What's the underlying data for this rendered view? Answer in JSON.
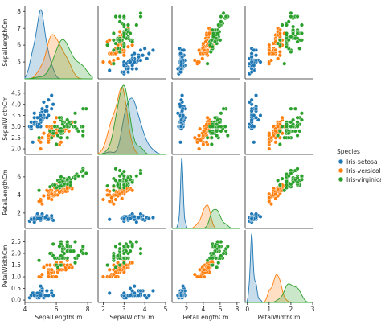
{
  "chart_data": {
    "type": "scatter",
    "kind": "pairplot",
    "variables": [
      "SepalLengthCm",
      "SepalWidthCm",
      "PetalLengthCm",
      "PetalWidthCm"
    ],
    "axes": {
      "SepalLengthCm": {
        "range": [
          4.0,
          8.3
        ],
        "ticks": [
          4,
          6,
          8
        ],
        "row_ticks": [
          5,
          6,
          7,
          8
        ]
      },
      "SepalWidthCm": {
        "range": [
          1.75,
          5.0
        ],
        "ticks": [
          2,
          3,
          4,
          5
        ],
        "row_ticks": [
          2.0,
          2.5,
          3.0,
          3.5,
          4.0,
          4.5
        ]
      },
      "PetalLengthCm": {
        "range": [
          0.3,
          8.3
        ],
        "ticks": [
          2,
          4,
          6,
          8
        ],
        "row_ticks": [
          2,
          4,
          6
        ]
      },
      "PetalWidthCm": {
        "range": [
          -0.1,
          3.0
        ],
        "ticks": [
          0,
          1,
          2,
          3
        ],
        "row_ticks": [
          0.0,
          0.5,
          1.0,
          1.5,
          2.0,
          2.5
        ]
      }
    },
    "diagonal": "kde",
    "offdiagonal": "scatter",
    "legend": {
      "title": "Species",
      "placement": "right",
      "entries": [
        "Iris-setosa",
        "Iris-versicolor",
        "Iris-virginica"
      ]
    },
    "series": [
      {
        "name": "Iris-setosa",
        "color": "#1f77b4",
        "points": [
          [
            5.1,
            3.5,
            1.4,
            0.2
          ],
          [
            4.9,
            3.0,
            1.4,
            0.2
          ],
          [
            4.7,
            3.2,
            1.3,
            0.2
          ],
          [
            4.6,
            3.1,
            1.5,
            0.2
          ],
          [
            5.0,
            3.6,
            1.4,
            0.2
          ],
          [
            5.4,
            3.9,
            1.7,
            0.4
          ],
          [
            4.6,
            3.4,
            1.4,
            0.3
          ],
          [
            5.0,
            3.4,
            1.5,
            0.2
          ],
          [
            4.4,
            2.9,
            1.4,
            0.2
          ],
          [
            4.9,
            3.1,
            1.5,
            0.1
          ],
          [
            5.4,
            3.7,
            1.5,
            0.2
          ],
          [
            4.8,
            3.4,
            1.6,
            0.2
          ],
          [
            4.8,
            3.0,
            1.4,
            0.1
          ],
          [
            4.3,
            3.0,
            1.1,
            0.1
          ],
          [
            5.8,
            4.0,
            1.2,
            0.2
          ],
          [
            5.7,
            4.4,
            1.5,
            0.4
          ],
          [
            5.4,
            3.9,
            1.3,
            0.4
          ],
          [
            5.1,
            3.5,
            1.4,
            0.3
          ],
          [
            5.7,
            3.8,
            1.7,
            0.3
          ],
          [
            5.1,
            3.8,
            1.5,
            0.3
          ],
          [
            5.4,
            3.4,
            1.7,
            0.2
          ],
          [
            5.1,
            3.7,
            1.5,
            0.4
          ],
          [
            4.6,
            3.6,
            1.0,
            0.2
          ],
          [
            5.1,
            3.3,
            1.7,
            0.5
          ],
          [
            4.8,
            3.4,
            1.9,
            0.2
          ],
          [
            5.0,
            3.0,
            1.6,
            0.2
          ],
          [
            5.0,
            3.4,
            1.6,
            0.4
          ],
          [
            5.2,
            3.5,
            1.5,
            0.2
          ],
          [
            5.2,
            3.4,
            1.4,
            0.2
          ],
          [
            4.7,
            3.2,
            1.6,
            0.2
          ],
          [
            4.8,
            3.1,
            1.6,
            0.2
          ],
          [
            5.4,
            3.4,
            1.5,
            0.4
          ],
          [
            5.2,
            4.1,
            1.5,
            0.1
          ],
          [
            5.5,
            4.2,
            1.4,
            0.2
          ],
          [
            4.9,
            3.1,
            1.5,
            0.1
          ],
          [
            5.0,
            3.2,
            1.2,
            0.2
          ],
          [
            5.5,
            3.5,
            1.3,
            0.2
          ],
          [
            4.9,
            3.1,
            1.5,
            0.1
          ],
          [
            4.4,
            3.0,
            1.3,
            0.2
          ],
          [
            5.1,
            3.4,
            1.5,
            0.2
          ],
          [
            5.0,
            3.5,
            1.3,
            0.3
          ],
          [
            4.5,
            2.3,
            1.3,
            0.3
          ],
          [
            4.4,
            3.2,
            1.3,
            0.2
          ],
          [
            5.0,
            3.5,
            1.6,
            0.6
          ],
          [
            5.1,
            3.8,
            1.9,
            0.4
          ],
          [
            4.8,
            3.0,
            1.4,
            0.3
          ],
          [
            5.1,
            3.8,
            1.6,
            0.2
          ],
          [
            4.6,
            3.2,
            1.4,
            0.2
          ],
          [
            5.3,
            3.7,
            1.5,
            0.2
          ],
          [
            5.0,
            3.3,
            1.4,
            0.2
          ]
        ]
      },
      {
        "name": "Iris-versicolor",
        "color": "#ff7f0e",
        "points": [
          [
            7.0,
            3.2,
            4.7,
            1.4
          ],
          [
            6.4,
            3.2,
            4.5,
            1.5
          ],
          [
            6.9,
            3.1,
            4.9,
            1.5
          ],
          [
            5.5,
            2.3,
            4.0,
            1.3
          ],
          [
            6.5,
            2.8,
            4.6,
            1.5
          ],
          [
            5.7,
            2.8,
            4.5,
            1.3
          ],
          [
            6.3,
            3.3,
            4.7,
            1.6
          ],
          [
            4.9,
            2.4,
            3.3,
            1.0
          ],
          [
            6.6,
            2.9,
            4.6,
            1.3
          ],
          [
            5.2,
            2.7,
            3.9,
            1.4
          ],
          [
            5.0,
            2.0,
            3.5,
            1.0
          ],
          [
            5.9,
            3.0,
            4.2,
            1.5
          ],
          [
            6.0,
            2.2,
            4.0,
            1.0
          ],
          [
            6.1,
            2.9,
            4.7,
            1.4
          ],
          [
            5.6,
            2.9,
            3.6,
            1.3
          ],
          [
            6.7,
            3.1,
            4.4,
            1.4
          ],
          [
            5.6,
            3.0,
            4.5,
            1.5
          ],
          [
            5.8,
            2.7,
            4.1,
            1.0
          ],
          [
            6.2,
            2.2,
            4.5,
            1.5
          ],
          [
            5.6,
            2.5,
            3.9,
            1.1
          ],
          [
            5.9,
            3.2,
            4.8,
            1.8
          ],
          [
            6.1,
            2.8,
            4.0,
            1.3
          ],
          [
            6.3,
            2.5,
            4.9,
            1.5
          ],
          [
            6.1,
            2.8,
            4.7,
            1.2
          ],
          [
            6.4,
            2.9,
            4.3,
            1.3
          ],
          [
            6.6,
            3.0,
            4.4,
            1.4
          ],
          [
            6.8,
            2.8,
            4.8,
            1.4
          ],
          [
            6.7,
            3.0,
            5.0,
            1.7
          ],
          [
            6.0,
            2.9,
            4.5,
            1.5
          ],
          [
            5.7,
            2.6,
            3.5,
            1.0
          ],
          [
            5.5,
            2.4,
            3.8,
            1.1
          ],
          [
            5.5,
            2.4,
            3.7,
            1.0
          ],
          [
            5.8,
            2.7,
            3.9,
            1.2
          ],
          [
            6.0,
            2.7,
            5.1,
            1.6
          ],
          [
            5.4,
            3.0,
            4.5,
            1.5
          ],
          [
            6.0,
            3.4,
            4.5,
            1.6
          ],
          [
            6.7,
            3.1,
            4.7,
            1.5
          ],
          [
            6.3,
            2.3,
            4.4,
            1.3
          ],
          [
            5.6,
            3.0,
            4.1,
            1.3
          ],
          [
            5.5,
            2.5,
            4.0,
            1.3
          ],
          [
            5.5,
            2.6,
            4.4,
            1.2
          ],
          [
            6.1,
            3.0,
            4.6,
            1.4
          ],
          [
            5.8,
            2.6,
            4.0,
            1.2
          ],
          [
            5.0,
            2.3,
            3.3,
            1.0
          ],
          [
            5.6,
            2.7,
            4.2,
            1.3
          ],
          [
            5.7,
            3.0,
            4.2,
            1.2
          ],
          [
            5.7,
            2.9,
            4.2,
            1.3
          ],
          [
            6.2,
            2.9,
            4.3,
            1.3
          ],
          [
            5.1,
            2.5,
            3.0,
            1.1
          ],
          [
            5.7,
            2.8,
            4.1,
            1.3
          ]
        ]
      },
      {
        "name": "Iris-virginica",
        "color": "#2ca02c",
        "points": [
          [
            6.3,
            3.3,
            6.0,
            2.5
          ],
          [
            5.8,
            2.7,
            5.1,
            1.9
          ],
          [
            7.1,
            3.0,
            5.9,
            2.1
          ],
          [
            6.3,
            2.9,
            5.6,
            1.8
          ],
          [
            6.5,
            3.0,
            5.8,
            2.2
          ],
          [
            7.6,
            3.0,
            6.6,
            2.1
          ],
          [
            4.9,
            2.5,
            4.5,
            1.7
          ],
          [
            7.3,
            2.9,
            6.3,
            1.8
          ],
          [
            6.7,
            2.5,
            5.8,
            1.8
          ],
          [
            7.2,
            3.6,
            6.1,
            2.5
          ],
          [
            6.5,
            3.2,
            5.1,
            2.0
          ],
          [
            6.4,
            2.7,
            5.3,
            1.9
          ],
          [
            6.8,
            3.0,
            5.5,
            2.1
          ],
          [
            5.7,
            2.5,
            5.0,
            2.0
          ],
          [
            5.8,
            2.8,
            5.1,
            2.4
          ],
          [
            6.4,
            3.2,
            5.3,
            2.3
          ],
          [
            6.5,
            3.0,
            5.5,
            1.8
          ],
          [
            7.7,
            3.8,
            6.7,
            2.2
          ],
          [
            7.7,
            2.6,
            6.9,
            2.3
          ],
          [
            6.0,
            2.2,
            5.0,
            1.5
          ],
          [
            6.9,
            3.2,
            5.7,
            2.3
          ],
          [
            5.6,
            2.8,
            4.9,
            2.0
          ],
          [
            7.7,
            2.8,
            6.7,
            2.0
          ],
          [
            6.3,
            2.7,
            4.9,
            1.8
          ],
          [
            6.7,
            3.3,
            5.7,
            2.1
          ],
          [
            7.2,
            3.2,
            6.0,
            1.8
          ],
          [
            6.2,
            2.8,
            4.8,
            1.8
          ],
          [
            6.1,
            3.0,
            4.9,
            1.8
          ],
          [
            6.4,
            2.8,
            5.6,
            2.1
          ],
          [
            7.2,
            3.0,
            5.8,
            1.6
          ],
          [
            7.4,
            2.8,
            6.1,
            1.9
          ],
          [
            7.9,
            3.8,
            6.4,
            2.0
          ],
          [
            6.4,
            2.8,
            5.6,
            2.2
          ],
          [
            6.3,
            2.8,
            5.1,
            1.5
          ],
          [
            6.1,
            2.6,
            5.6,
            1.4
          ],
          [
            7.7,
            3.0,
            6.1,
            2.3
          ],
          [
            6.3,
            3.4,
            5.6,
            2.4
          ],
          [
            6.4,
            3.1,
            5.5,
            1.8
          ],
          [
            6.0,
            3.0,
            4.8,
            1.8
          ],
          [
            6.9,
            3.1,
            5.4,
            2.1
          ],
          [
            6.7,
            3.1,
            5.6,
            2.4
          ],
          [
            6.9,
            3.1,
            5.1,
            2.3
          ],
          [
            5.8,
            2.7,
            5.1,
            1.9
          ],
          [
            6.8,
            3.2,
            5.9,
            2.3
          ],
          [
            6.7,
            3.3,
            5.7,
            2.5
          ],
          [
            6.7,
            3.0,
            5.2,
            2.3
          ],
          [
            6.3,
            2.5,
            5.0,
            1.9
          ],
          [
            6.5,
            3.0,
            5.2,
            2.0
          ],
          [
            6.2,
            3.4,
            5.4,
            2.3
          ],
          [
            5.9,
            3.0,
            5.1,
            1.8
          ]
        ]
      }
    ]
  }
}
